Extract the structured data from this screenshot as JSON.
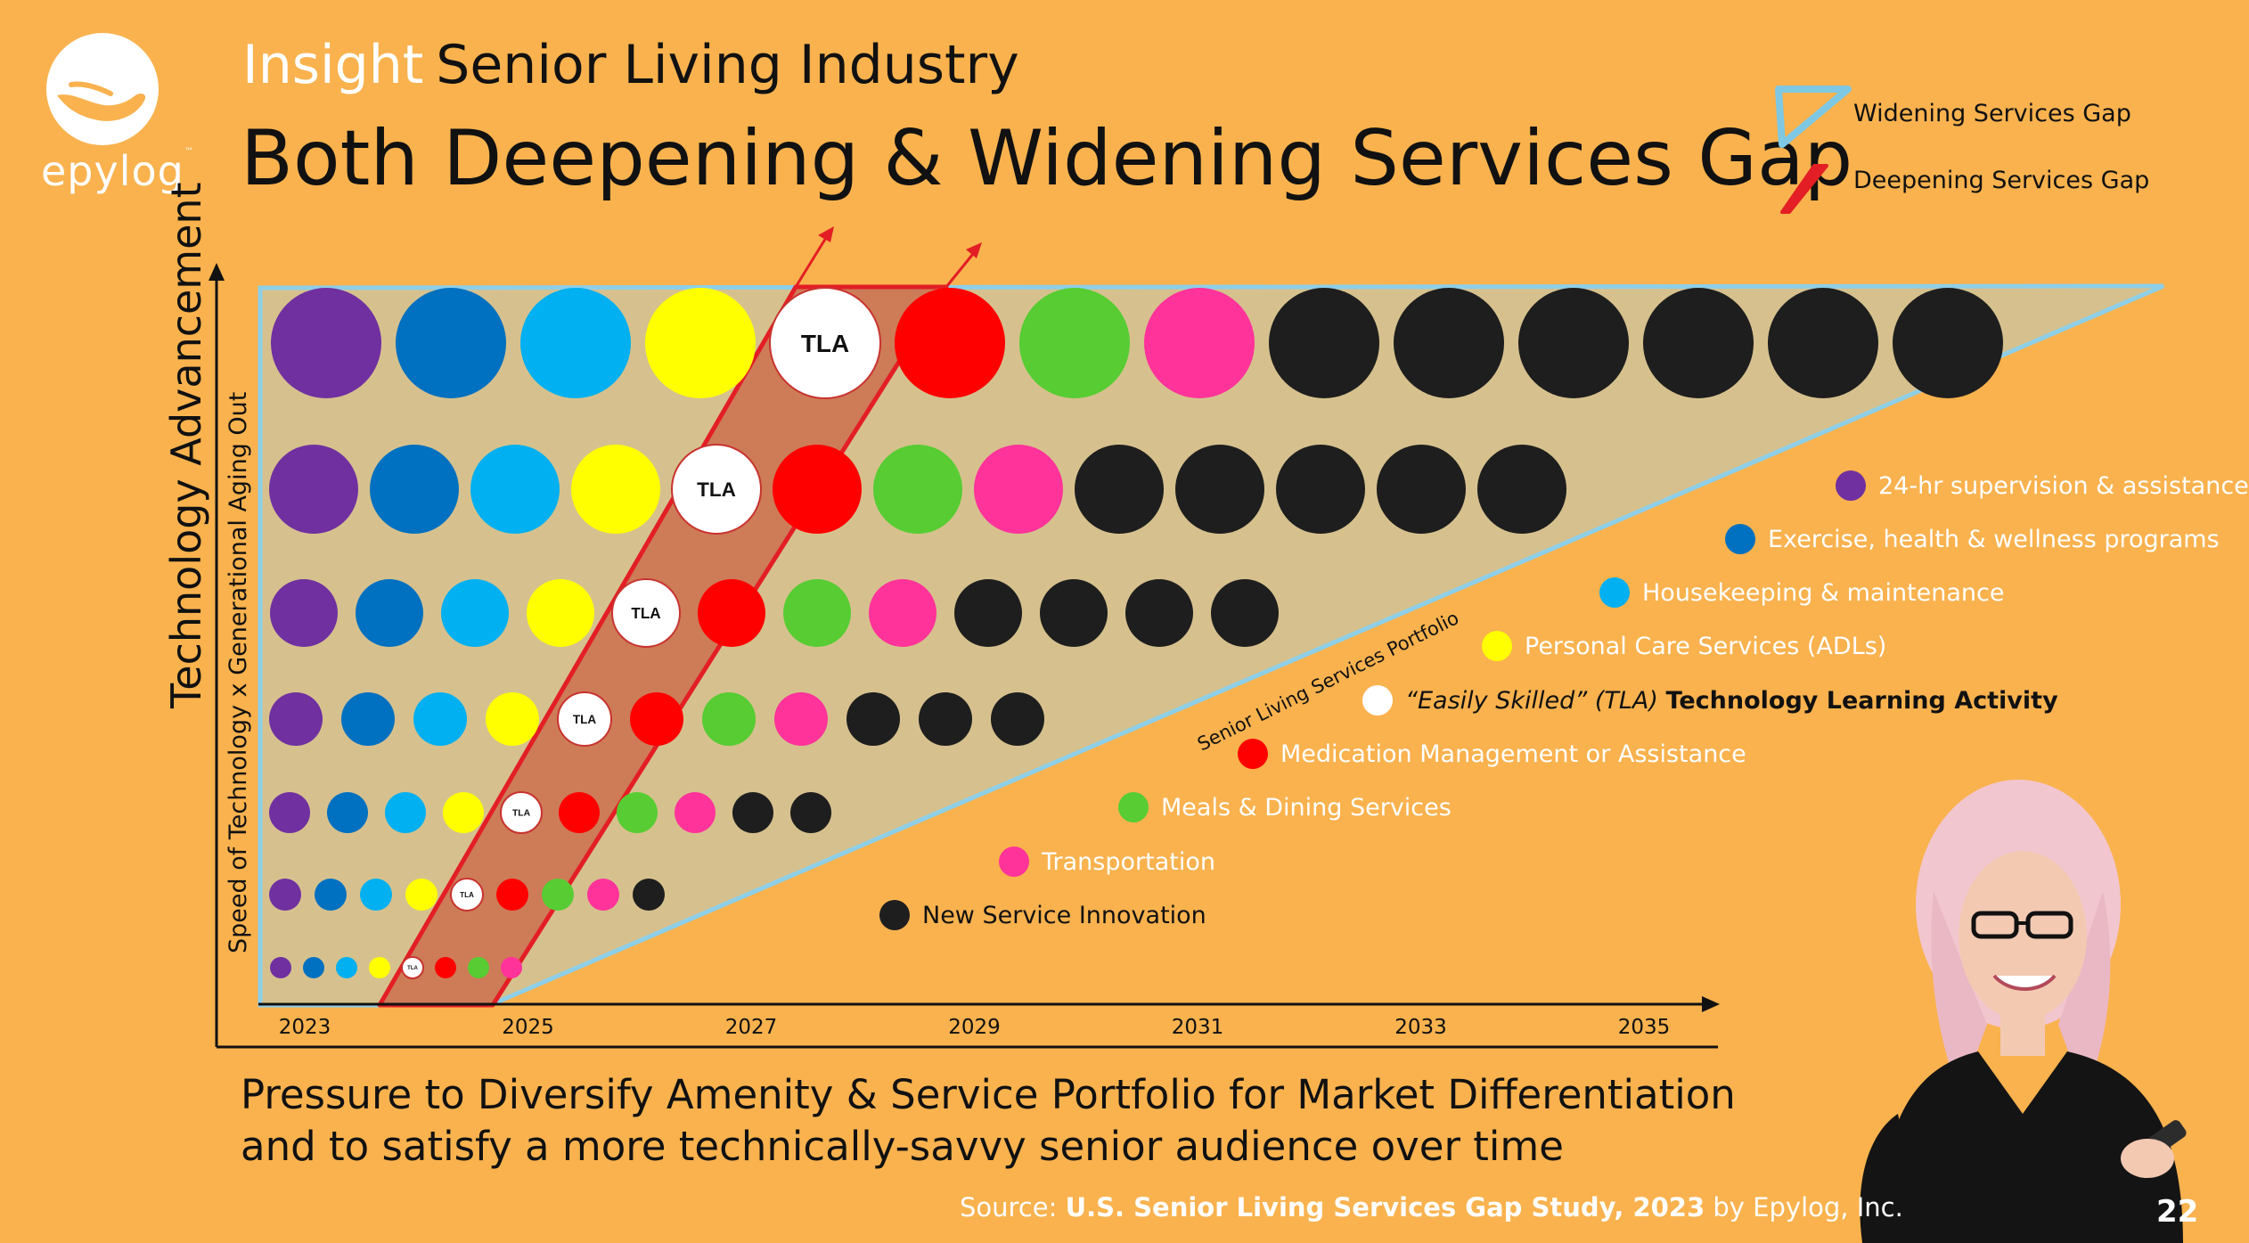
{
  "header": {
    "insight": "Insight",
    "industry": "Senior Living Industry",
    "title": "Both Deepening & Widening Services Gap"
  },
  "logo": {
    "brand": "epylog"
  },
  "gap_legend": {
    "widening": "Widening Services Gap",
    "deepening": "Deepening Services Gap",
    "widening_color": "#7EC8E3",
    "deepening_color": "#E31E24"
  },
  "axes": {
    "y_outer": "Technology Advancement",
    "y_inner": "Speed of Technology x Generational Aging Out",
    "years": [
      "2023",
      "2025",
      "2027",
      "2029",
      "2031",
      "2033",
      "2035"
    ]
  },
  "portfolio_label": "Senior Living Services Portfolio",
  "colors": {
    "P": "#7030A0",
    "B": "#0070C0",
    "C": "#00B0F0",
    "Y": "#FFFF00",
    "T": "#FFFFFF",
    "R": "#FF0000",
    "G": "#57CC33",
    "M": "#FF3399",
    "K": "#1E1E1E"
  },
  "chart_data": {
    "type": "bubble-matrix",
    "tla_label": "TLA",
    "rows": [
      "P B C Y T R G M K K K K K K",
      "P B C Y T R G M K K K K K",
      "P B C Y T R G M K K K K",
      "P B C Y T R G M K K K",
      "P B C Y T R G M K K",
      "P B C Y T R G M K",
      "P B C Y T R G M"
    ]
  },
  "services": [
    {
      "key": "P",
      "label": "24-hr supervision & assistance"
    },
    {
      "key": "B",
      "label": "Exercise, health & wellness programs"
    },
    {
      "key": "C",
      "label": "Housekeeping & maintenance"
    },
    {
      "key": "Y",
      "label": "Personal Care Services (ADLs)"
    },
    {
      "key": "T",
      "label_italic": "“Easily Skilled” (TLA)",
      "label_bold": "Technology Learning Activity"
    },
    {
      "key": "R",
      "label": "Medication Management or Assistance"
    },
    {
      "key": "G",
      "label": "Meals & Dining Services"
    },
    {
      "key": "M",
      "label": "Transportation"
    },
    {
      "key": "K",
      "label": "New Service Innovation"
    }
  ],
  "subtitle": {
    "line1": "Pressure to Diversify Amenity & Service Portfolio for Market Differentiation",
    "line2": "and to satisfy a more technically-savvy senior audience over time"
  },
  "source": {
    "prefix": "Source:",
    "study": "U.S. Senior Living Services Gap Study, 2023",
    "suffix": "by Epylog, Inc."
  },
  "page_number": "22"
}
